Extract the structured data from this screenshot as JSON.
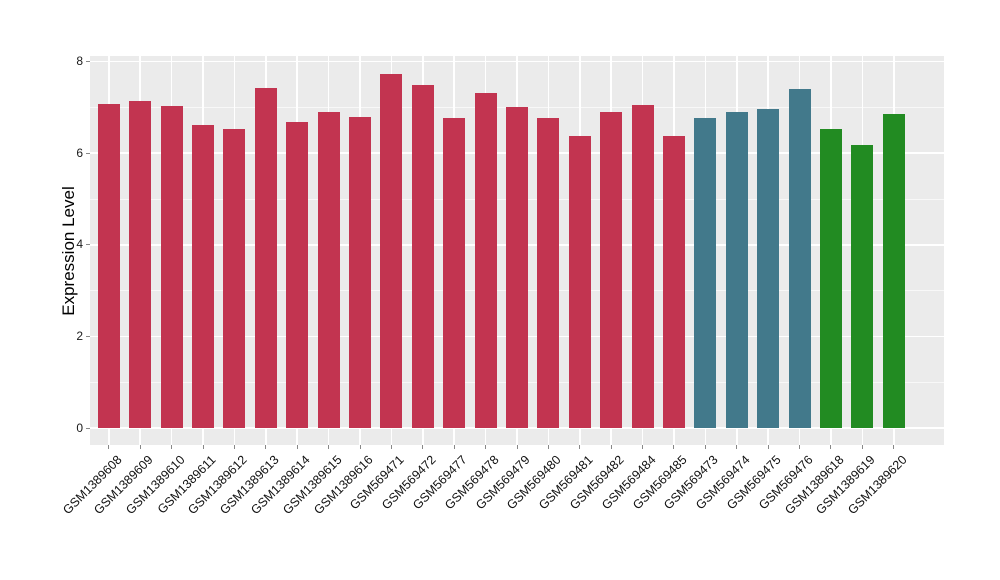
{
  "figure": {
    "background": "#FFFFFF",
    "panel_background": "#EBEBEB",
    "grid_major_color": "#FFFFFF",
    "grid_minor_color": "#FFFFFF",
    "tick_color": "#888888",
    "axis_text_color": "#111111"
  },
  "chart_data": {
    "type": "bar",
    "title": "",
    "xlabel": "",
    "ylabel": "Expression Level",
    "ylim": [
      0,
      8
    ],
    "yticks": [
      0,
      2,
      4,
      6,
      8
    ],
    "grid": "major horizontal + vertical at each category, minor horizontal at odd values; white on gray panel",
    "legend": "none",
    "categories": [
      "GSM1389608",
      "GSM1389609",
      "GSM1389610",
      "GSM1389611",
      "GSM1389612",
      "GSM1389613",
      "GSM1389614",
      "GSM1389615",
      "GSM1389616",
      "GSM569471",
      "GSM569472",
      "GSM569477",
      "GSM569478",
      "GSM569479",
      "GSM569480",
      "GSM569481",
      "GSM569482",
      "GSM569484",
      "GSM569485",
      "GSM569473",
      "GSM569474",
      "GSM569475",
      "GSM569476",
      "GSM1389618",
      "GSM1389619",
      "GSM1389620"
    ],
    "values": [
      7.07,
      7.13,
      7.02,
      6.62,
      6.53,
      7.42,
      6.69,
      6.91,
      6.78,
      7.73,
      7.5,
      6.77,
      7.31,
      7.01,
      6.76,
      6.38,
      6.9,
      7.05,
      6.38,
      6.77,
      6.91,
      6.96,
      7.41,
      6.53,
      6.18,
      6.86
    ],
    "bar_groups": [
      "red",
      "red",
      "red",
      "red",
      "red",
      "red",
      "red",
      "red",
      "red",
      "red",
      "red",
      "red",
      "red",
      "red",
      "red",
      "red",
      "red",
      "red",
      "red",
      "teal",
      "teal",
      "teal",
      "teal",
      "green",
      "green",
      "green"
    ],
    "group_colors": {
      "red": "#C23450",
      "teal": "#42798B",
      "green": "#228B22"
    }
  }
}
